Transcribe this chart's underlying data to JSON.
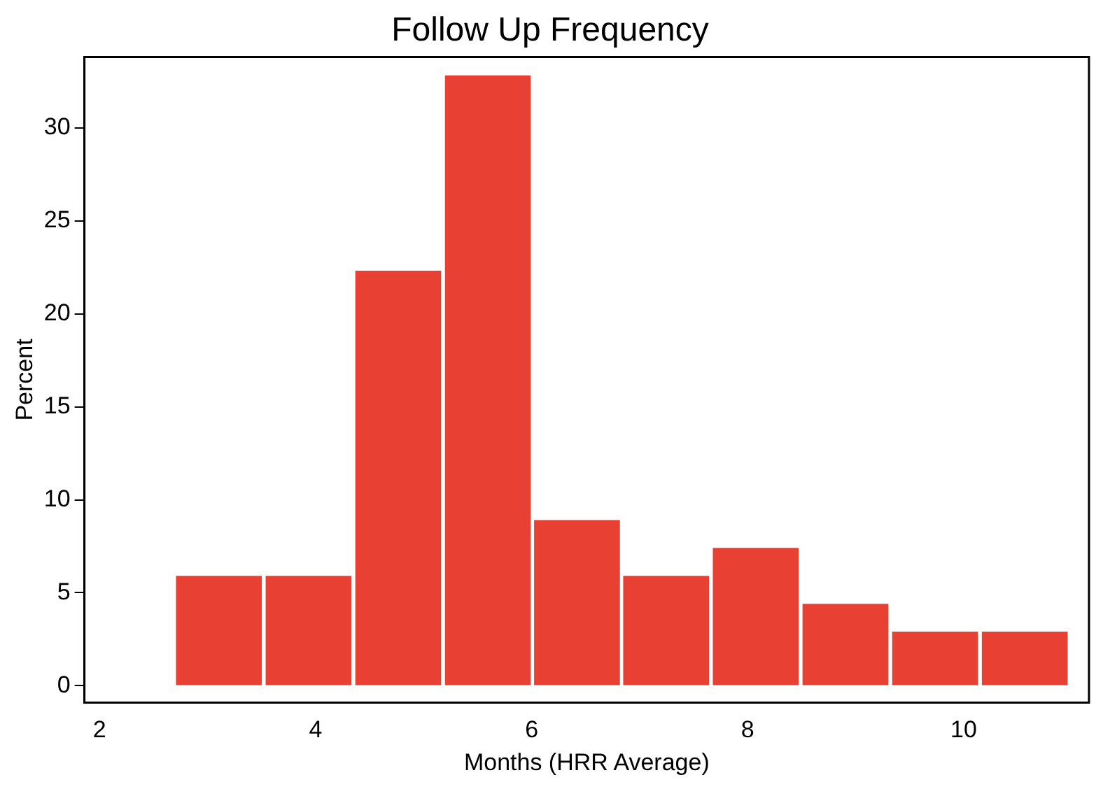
{
  "chart_data": {
    "type": "histogram",
    "title": "Follow Up Frequency",
    "xlabel": "Months (HRR Average)",
    "ylabel": "Percent",
    "bins": [
      2.69,
      3.52,
      4.35,
      5.18,
      6.01,
      6.83,
      7.66,
      8.49,
      9.32,
      10.15,
      10.98
    ],
    "values": [
      6,
      6,
      22.4,
      32.9,
      9,
      6,
      7.5,
      4.5,
      3,
      3
    ],
    "color": "#e84033",
    "xlim": [
      1.86,
      11.16
    ],
    "xticks": [
      2,
      4,
      6,
      8,
      10
    ],
    "ylim": [
      -0.9,
      33.8
    ],
    "yticks": [
      0,
      5,
      10,
      15,
      20,
      25,
      30
    ],
    "grid": false,
    "legend": false
  }
}
